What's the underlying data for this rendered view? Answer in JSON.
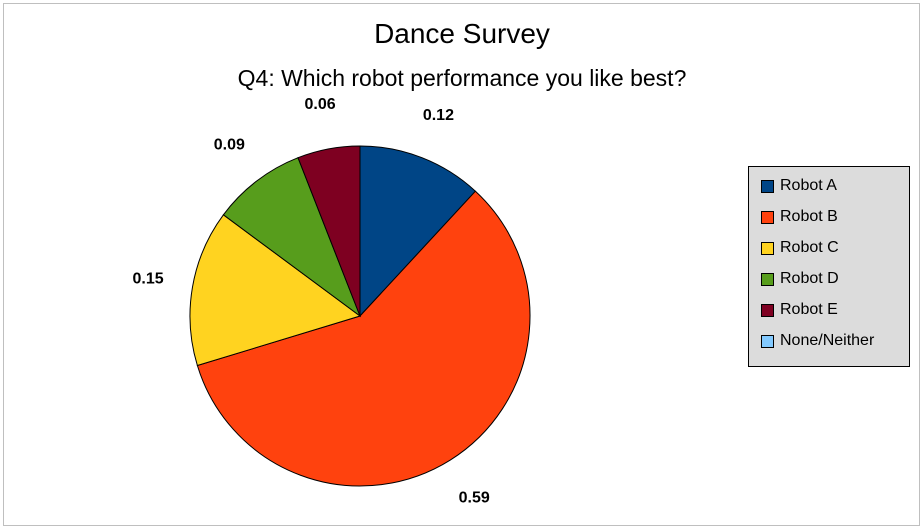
{
  "chart_data": {
    "type": "pie",
    "title": "Dance Survey",
    "subtitle": "Q4: Which robot performance you like best?",
    "legend_position": "right",
    "slices": [
      {
        "label": "Robot A",
        "value": 0.12,
        "value_label": "0.12",
        "color": "#004586"
      },
      {
        "label": "Robot B",
        "value": 0.59,
        "value_label": "0.59",
        "color": "#ff420e"
      },
      {
        "label": "Robot C",
        "value": 0.15,
        "value_label": "0.15",
        "color": "#ffd320"
      },
      {
        "label": "Robot D",
        "value": 0.09,
        "value_label": "0.09",
        "color": "#579d1c"
      },
      {
        "label": "Robot E",
        "value": 0.06,
        "value_label": "0.06",
        "color": "#7e0021"
      },
      {
        "label": "None/Neither",
        "value": 0,
        "value_label": "",
        "color": "#83caff"
      }
    ]
  }
}
